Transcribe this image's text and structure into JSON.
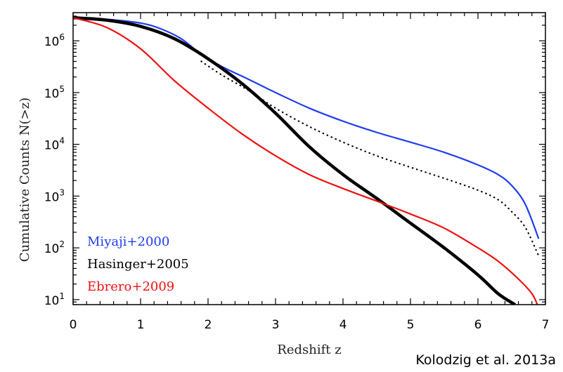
{
  "chart_data": {
    "type": "line",
    "xlabel": "Redshift  z",
    "ylabel": "Cumulative Counts  N(>z)",
    "xlim": [
      0,
      7
    ],
    "ylim": [
      8,
      3500000
    ],
    "yscale": "log",
    "xticks": [
      0,
      1,
      2,
      3,
      4,
      5,
      6,
      7
    ],
    "yticks": [
      {
        "value": 10,
        "mantissa": "10",
        "exp": "1"
      },
      {
        "value": 100,
        "mantissa": "10",
        "exp": "2"
      },
      {
        "value": 1000,
        "mantissa": "10",
        "exp": "3"
      },
      {
        "value": 10000,
        "mantissa": "10",
        "exp": "4"
      },
      {
        "value": 100000,
        "mantissa": "10",
        "exp": "5"
      },
      {
        "value": 1000000,
        "mantissa": "10",
        "exp": "6"
      }
    ],
    "grid": false,
    "legend_position": "bottom-left",
    "series": [
      {
        "name": "Miyaji+2000",
        "color": "#1f3cf0",
        "style": "solid",
        "width": 2.2,
        "x": [
          0,
          0.5,
          1.0,
          1.3,
          1.6,
          1.9,
          2.2,
          2.6,
          3.0,
          3.5,
          4.0,
          4.5,
          5.0,
          5.5,
          6.0,
          6.3,
          6.5,
          6.7,
          6.9
        ],
        "y": [
          2800000,
          2600000,
          2200000,
          1700000,
          1100000,
          550000,
          320000,
          180000,
          100000,
          50000,
          28000,
          17000,
          11000,
          7000,
          4000,
          2600,
          1600,
          700,
          150
        ]
      },
      {
        "name": "Hasinger+2005",
        "color": "#000000",
        "style": "solid",
        "width": 4.5,
        "x": [
          0,
          0.5,
          1.0,
          1.5,
          2.0,
          2.5,
          3.0,
          3.5,
          4.0,
          4.5,
          5.0,
          5.5,
          6.0,
          6.3,
          6.55
        ],
        "y": [
          2800000,
          2500000,
          1900000,
          1100000,
          450000,
          150000,
          40000,
          9000,
          2600,
          900,
          300,
          100,
          30,
          13,
          8
        ]
      },
      {
        "name": "",
        "color": "#000000",
        "style": "dotted",
        "width": 2.2,
        "x": [
          1.9,
          2.2,
          2.6,
          3.0,
          3.5,
          4.0,
          4.5,
          5.0,
          5.5,
          6.0,
          6.3,
          6.5,
          6.7,
          6.9
        ],
        "y": [
          400000,
          220000,
          110000,
          50000,
          22000,
          11000,
          6000,
          3600,
          2200,
          1300,
          850,
          500,
          250,
          70
        ]
      },
      {
        "name": "Ebrero+2009",
        "color": "#ee1111",
        "style": "solid",
        "width": 2.2,
        "x": [
          0,
          0.5,
          1.0,
          1.5,
          2.0,
          2.5,
          3.0,
          3.5,
          4.0,
          4.5,
          5.0,
          5.5,
          6.0,
          6.3,
          6.6,
          6.8,
          6.88
        ],
        "y": [
          2800000,
          1800000,
          700000,
          170000,
          50000,
          16000,
          6000,
          2600,
          1400,
          800,
          450,
          240,
          100,
          55,
          25,
          13,
          8
        ]
      }
    ]
  },
  "credit": "Kolodzig et al. 2013a"
}
